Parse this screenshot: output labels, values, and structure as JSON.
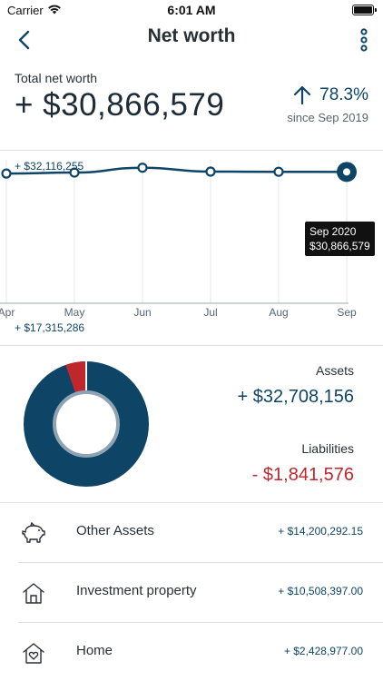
{
  "status_bar": {
    "carrier": "Carrier",
    "time": "6:01 AM"
  },
  "header": {
    "title": "Net worth"
  },
  "summary": {
    "label": "Total net worth",
    "value": "+ $30,866,579",
    "change_pct": "78.3%",
    "since": "since Sep 2019"
  },
  "chart_data": {
    "type": "line",
    "categories": [
      "Apr",
      "May",
      "Jun",
      "Jul",
      "Aug",
      "Sep"
    ],
    "values": [
      30700000,
      30800000,
      31300000,
      30900000,
      30880000,
      30866579
    ],
    "max_label": "+ $32,116,255",
    "min_label": "+ $17,315,286",
    "tooltip": {
      "date": "Sep 2020",
      "value": "$30,866,579"
    },
    "ylim": [
      17315286,
      32116255
    ],
    "colors": {
      "line": "#0e4566",
      "grid": "#e6e8ea"
    }
  },
  "breakdown": {
    "assets_label": "Assets",
    "assets_value": "+ $32,708,156",
    "liabilities_label": "Liabilities",
    "liabilities_value": "- $1,841,576",
    "assets_color": "#0e4566",
    "liabilities_color": "#c0272d"
  },
  "accounts": [
    {
      "icon": "piggy-bank-icon",
      "name": "Other Assets",
      "amount": "+ $14,200,292.15"
    },
    {
      "icon": "house-icon",
      "name": "Investment property",
      "amount": "+ $10,508,397.00"
    },
    {
      "icon": "home-heart-icon",
      "name": "Home",
      "amount": "+ $2,428,977.00"
    }
  ]
}
